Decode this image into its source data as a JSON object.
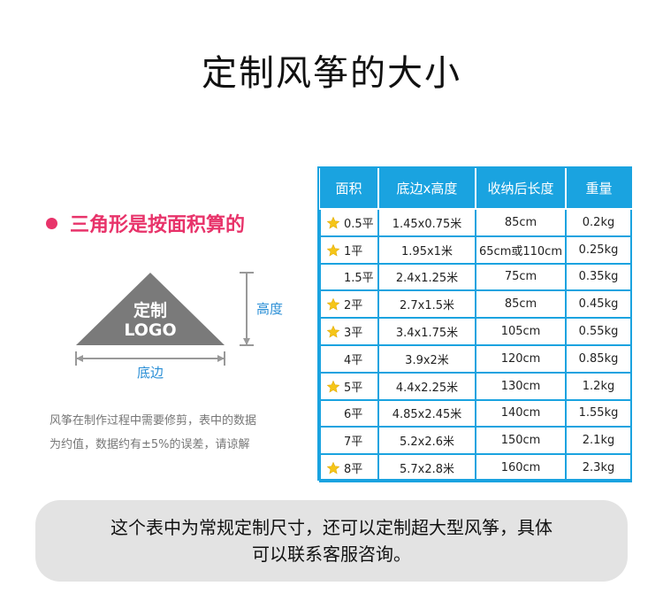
{
  "title": "定制风筝的大小",
  "bullet": "三角形是按面积算的",
  "diagram": {
    "logo_line1": "定制",
    "logo_line2": "LOGO",
    "height_label": "高度",
    "base_label": "底边",
    "fill_color": "#7a7a7a",
    "line_color": "#999999"
  },
  "note": {
    "line1": "风筝在制作过程中需要修剪，表中的数据",
    "line2": "为约值，数据约有±5%的误差，请谅解"
  },
  "table": {
    "headers": [
      "面积",
      "底边x高度",
      "收纳后长度",
      "重量"
    ],
    "header_color": "#1aa3e0",
    "rows": [
      {
        "star": true,
        "area": "0.5平",
        "dims": "1.45x0.75米",
        "length": "85cm",
        "weight": "0.2kg"
      },
      {
        "star": true,
        "area": "1平",
        "dims": "1.95x1米",
        "length": "65cm或110cm",
        "weight": "0.25kg"
      },
      {
        "star": false,
        "area": "1.5平",
        "dims": "2.4x1.25米",
        "length": "75cm",
        "weight": "0.35kg"
      },
      {
        "star": true,
        "area": "2平",
        "dims": "2.7x1.5米",
        "length": "85cm",
        "weight": "0.45kg"
      },
      {
        "star": true,
        "area": "3平",
        "dims": "3.4x1.75米",
        "length": "105cm",
        "weight": "0.55kg"
      },
      {
        "star": false,
        "area": "4平",
        "dims": "3.9x2米",
        "length": "120cm",
        "weight": "0.85kg"
      },
      {
        "star": true,
        "area": "5平",
        "dims": "4.4x2.25米",
        "length": "130cm",
        "weight": "1.2kg"
      },
      {
        "star": false,
        "area": "6平",
        "dims": "4.85x2.45米",
        "length": "140cm",
        "weight": "1.55kg"
      },
      {
        "star": false,
        "area": "7平",
        "dims": "5.2x2.6米",
        "length": "150cm",
        "weight": "2.1kg"
      },
      {
        "star": true,
        "area": "8平",
        "dims": "5.7x2.8米",
        "length": "160cm",
        "weight": "2.3kg"
      }
    ],
    "star_icon": "star-icon",
    "star_color": "#f5c518"
  },
  "footer": {
    "line1": "这个表中为常规定制尺寸，还可以定制超大型风筝，具体",
    "line2": "可以联系客服咨询。"
  }
}
